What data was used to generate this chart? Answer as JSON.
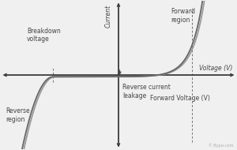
{
  "background_color": "#f0f0f0",
  "curve_color": "#666666",
  "curve_color2": "#999999",
  "axis_color": "#333333",
  "dashed_color": "#666666",
  "label_color": "#444444",
  "labels": {
    "current": "Current",
    "voltage_v": "Voltage (V)",
    "forward_voltage": "Forward Voltage (V)",
    "forward_region": "Forward\nregion",
    "reverse_region": "Reverse\nregion",
    "breakdown_voltage": "Breakdown\nvoltage",
    "reverse_current_leakage": "Reverse current\nleakage",
    "watermark": "© Byjus.com"
  },
  "xlim": [
    -4.5,
    4.5
  ],
  "ylim": [
    -5.0,
    5.0
  ],
  "breakdown_x": -2.5,
  "forward_voltage_x": 2.8,
  "axis_origin_x": 0.0,
  "axis_origin_y": 0.0
}
